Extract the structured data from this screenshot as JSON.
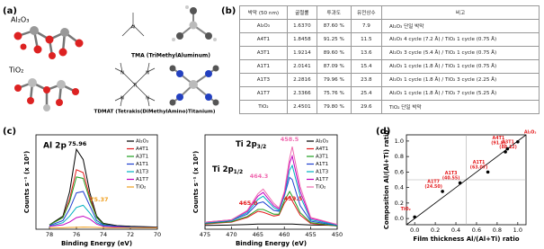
{
  "panel_a": {
    "label": "(a)",
    "al2o3": "Al₂O₃",
    "tio2": "TiO₂",
    "tma": "TMA (TriMethylAluminum)",
    "tdmat": "TDMAT (Tetrakis(DiMethylAmino)Titanium)",
    "al_atom": "Al",
    "ti_atom": "Ti",
    "n_atom": "N"
  },
  "panel_b": {
    "label": "(b)",
    "table": {
      "header": [
        "박막 (50 nm)",
        "굴절률",
        "투과도",
        "유전상수",
        "비고"
      ],
      "rows": [
        [
          "Al₂O₃",
          "1.6370",
          "87.60 %",
          "7.9",
          "Al₂O₃ 단일 박막"
        ],
        [
          "A4T1",
          "1.8458",
          "91.25 %",
          "11.5",
          "Al₂O₃ 4 cycle (7.2 Å) / TiO₂ 1 cycle (0.75 Å)"
        ],
        [
          "A3T1",
          "1.9214",
          "89.60 %",
          "13.6",
          "Al₂O₃ 3 cycle (5.4 Å) / TiO₂ 1 cycle (0.75 Å)"
        ],
        [
          "A1T1",
          "2.0141",
          "87.09 %",
          "15.4",
          "Al₂O₃ 1 cycle (1.8 Å) / TiO₂ 1 cycle (0.75 Å)"
        ],
        [
          "A1T3",
          "2.2816",
          "79.96 %",
          "23.8",
          "Al₂O₃ 1 cycle (1.8 Å) / TiO₂ 3 cycle (2.25 Å)"
        ],
        [
          "A1T7",
          "2.3366",
          "75.76 %",
          "25.4",
          "Al₂O₃ 1 cycle (1.8 Å) / TiO₂ 7 cycle (5.25 Å)"
        ],
        [
          "TiO₂",
          "2.4501",
          "79.80 %",
          "29.6",
          "TiO₂ 단일 박막"
        ]
      ]
    }
  },
  "panel_c": {
    "label": "(c)"
  },
  "panel_d": {
    "label": "(d)"
  },
  "chart_data": [
    {
      "type": "line",
      "title": "Al 2p",
      "x_label": "Binding Energy (eV)",
      "y_label": "Counts s⁻¹ (x 10³)",
      "x": [
        78,
        77,
        76.5,
        76,
        75.5,
        75,
        74.5,
        74,
        73,
        72,
        70
      ],
      "xlim": [
        79,
        70
      ],
      "xticks": [
        78,
        76,
        74,
        72,
        70
      ],
      "ylim": [
        0,
        6.5
      ],
      "series": [
        {
          "name": "Al₂O₃",
          "color": "#000000",
          "values": [
            0.3,
            0.9,
            2.6,
            5.5,
            4.8,
            2.5,
            0.9,
            0.4,
            0.25,
            0.2,
            0.15
          ]
        },
        {
          "name": "A4T1",
          "color": "#e41a1c",
          "values": [
            0.3,
            0.8,
            2.1,
            4.1,
            3.9,
            2.2,
            0.8,
            0.35,
            0.2,
            0.15,
            0.1
          ]
        },
        {
          "name": "A3T1",
          "color": "#1f9e1f",
          "values": [
            0.3,
            0.8,
            1.9,
            3.6,
            3.5,
            2.0,
            0.8,
            0.35,
            0.2,
            0.15,
            0.1
          ]
        },
        {
          "name": "A1T1",
          "color": "#1f3fd0",
          "values": [
            0.25,
            0.6,
            1.4,
            2.5,
            2.6,
            1.6,
            0.6,
            0.3,
            0.2,
            0.15,
            0.1
          ]
        },
        {
          "name": "A1T3",
          "color": "#00b0c0",
          "values": [
            0.2,
            0.45,
            0.9,
            1.5,
            1.65,
            1.1,
            0.45,
            0.25,
            0.15,
            0.1,
            0.1
          ]
        },
        {
          "name": "A1T7",
          "color": "#c000c0",
          "values": [
            0.2,
            0.3,
            0.5,
            0.8,
            0.9,
            0.7,
            0.35,
            0.2,
            0.15,
            0.1,
            0.1
          ]
        },
        {
          "name": "TiO₂",
          "color": "#f0a020",
          "values": [
            0.1,
            0.1,
            0.12,
            0.13,
            0.15,
            0.14,
            0.12,
            0.1,
            0.1,
            0.1,
            0.1
          ]
        }
      ],
      "annotations": [
        {
          "text": "75.96",
          "color": "#000000"
        },
        {
          "text": "75.37",
          "color": "#f0a020"
        }
      ]
    },
    {
      "type": "line",
      "x_label": "Binding Energy (eV)",
      "y_label": "Counts s⁻¹ (x 10³)",
      "peak_labels": [
        {
          "text": "Ti 2p",
          "sub": "3/2"
        },
        {
          "text": "Ti 2p",
          "sub": "1/2"
        }
      ],
      "x": [
        475,
        470,
        467,
        465,
        464,
        462,
        461,
        460,
        459,
        458.5,
        457,
        455,
        450
      ],
      "xlim": [
        475,
        450
      ],
      "xticks": [
        475,
        470,
        465,
        460,
        455,
        450
      ],
      "ylim": [
        0,
        20
      ],
      "series": [
        {
          "name": "Al₂O₃",
          "color": "#000000",
          "values": [
            0.8,
            0.9,
            1,
            1.1,
            1.1,
            1.1,
            1.1,
            1.1,
            1.1,
            1.1,
            1,
            0.9,
            0.8
          ]
        },
        {
          "name": "A4T1",
          "color": "#e41a1c",
          "values": [
            1.1,
            1.5,
            2.5,
            3.8,
            3.6,
            2.8,
            3,
            5.5,
            7,
            6,
            3,
            1.2,
            0.7
          ]
        },
        {
          "name": "A3T1",
          "color": "#1f9e1f",
          "values": [
            1.2,
            1.6,
            2.7,
            4.2,
            4.2,
            3.2,
            3.2,
            6,
            8,
            7,
            3.5,
            1.4,
            0.7
          ]
        },
        {
          "name": "A1T1",
          "color": "#1f3fd0",
          "values": [
            1.3,
            1.8,
            3.2,
            5.5,
            5.8,
            4,
            3.8,
            7,
            11,
            10.5,
            5,
            1.7,
            0.8
          ]
        },
        {
          "name": "A1T3",
          "color": "#00b0c0",
          "values": [
            1.4,
            1.9,
            3.5,
            6.3,
            7,
            4.6,
            4,
            7,
            12.5,
            13.5,
            7,
            2,
            0.9
          ]
        },
        {
          "name": "A1T7",
          "color": "#c000c0",
          "values": [
            1.5,
            2,
            3.8,
            7,
            7.8,
            5,
            4.3,
            7.5,
            14,
            15.5,
            8,
            2.3,
            1
          ]
        },
        {
          "name": "TiO₂",
          "color": "#f06ab0",
          "values": [
            1.5,
            2.0,
            4,
            7.5,
            8.5,
            5.5,
            4.5,
            8,
            15,
            17.5,
            9,
            2.5,
            1.0
          ]
        }
      ],
      "annotations": [
        {
          "text": "458.5",
          "color": "#f06ab0"
        },
        {
          "text": "464.3",
          "color": "#f06ab0"
        },
        {
          "text": "465.0",
          "color": "#e41a1c"
        },
        {
          "text": "459.5",
          "color": "#e41a1c"
        }
      ]
    },
    {
      "type": "scatter",
      "x_label": "Film thickness Al/(Al+Ti) ratio",
      "y_label": "Composition Al/(Al+Ti) ratio",
      "x": [
        0,
        0.27,
        0.44,
        0.71,
        0.88,
        0.9,
        1.0
      ],
      "values": [
        0.02,
        0.35,
        0.46,
        0.6,
        0.86,
        0.9,
        0.99
      ],
      "point_labels": [
        "TiO₂",
        "A1T7",
        "A1T3",
        "A1T1",
        "A3T1",
        "A4T1",
        "Al₂O₃"
      ],
      "point_notes": [
        null,
        "(24.50)",
        "(40.55)",
        "(63.07)",
        "(88.12)",
        "(91.8)",
        null
      ],
      "color": "#000000",
      "label_color": "#e41a1c",
      "xlim": [
        -0.08,
        1.08
      ],
      "ylim": [
        -0.08,
        1.08
      ],
      "xticks": [
        {
          "value": 0,
          "label": "0.0"
        },
        {
          "value": 0.2,
          "label": "0.2"
        },
        {
          "value": 0.4,
          "label": "0.4"
        },
        {
          "value": 0.6,
          "label": "0.6"
        },
        {
          "value": 0.8,
          "label": "0.8"
        },
        {
          "value": 1,
          "label": "1.0"
        }
      ],
      "yticks": [
        {
          "value": 0,
          "label": "0.0"
        },
        {
          "value": 0.2,
          "label": "0.2"
        },
        {
          "value": 0.4,
          "label": "0.4"
        },
        {
          "value": 0.6,
          "label": "0.6"
        },
        {
          "value": 0.8,
          "label": "0.8"
        },
        {
          "value": 1,
          "label": "1.0"
        }
      ]
    }
  ]
}
